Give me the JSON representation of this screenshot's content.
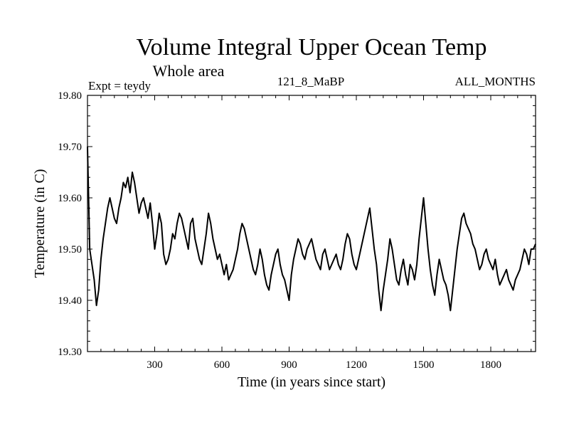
{
  "chart_data": {
    "type": "line",
    "title": "Volume Integral Upper Ocean Temp",
    "subtitle": "Whole area",
    "experiment": "Expt = teydy",
    "run": "121_8_MaBP",
    "period": "ALL_MONTHS",
    "xlabel": "Time (in years since start)",
    "ylabel": "Temperature (in C)",
    "xlim": [
      0,
      2000
    ],
    "ylim": [
      19.3,
      19.8
    ],
    "xticks": [
      300,
      600,
      900,
      1200,
      1500,
      1800
    ],
    "xtick_labels": [
      "300",
      "600",
      "900",
      "1200",
      "1500",
      "1800"
    ],
    "yticks": [
      19.3,
      19.4,
      19.5,
      19.6,
      19.7,
      19.8
    ],
    "ytick_labels": [
      "19.30",
      "19.40",
      "19.50",
      "19.60",
      "19.70",
      "19.80"
    ],
    "series": [
      {
        "name": "Temperature",
        "x": [
          0,
          10,
          20,
          30,
          40,
          50,
          60,
          70,
          80,
          90,
          100,
          110,
          120,
          130,
          140,
          150,
          160,
          170,
          180,
          190,
          200,
          210,
          220,
          230,
          240,
          250,
          260,
          270,
          280,
          290,
          300,
          310,
          320,
          330,
          340,
          350,
          360,
          370,
          380,
          390,
          400,
          410,
          420,
          430,
          440,
          450,
          460,
          470,
          480,
          490,
          500,
          510,
          520,
          530,
          540,
          550,
          560,
          570,
          580,
          590,
          600,
          610,
          620,
          630,
          640,
          650,
          660,
          670,
          680,
          690,
          700,
          710,
          720,
          730,
          740,
          750,
          760,
          770,
          780,
          790,
          800,
          810,
          820,
          830,
          840,
          850,
          860,
          870,
          880,
          890,
          900,
          910,
          920,
          930,
          940,
          950,
          960,
          970,
          980,
          990,
          1000,
          1010,
          1020,
          1030,
          1040,
          1050,
          1060,
          1070,
          1080,
          1090,
          1100,
          1110,
          1120,
          1130,
          1140,
          1150,
          1160,
          1170,
          1180,
          1190,
          1200,
          1210,
          1220,
          1230,
          1240,
          1250,
          1260,
          1270,
          1280,
          1290,
          1300,
          1310,
          1320,
          1330,
          1340,
          1350,
          1360,
          1370,
          1380,
          1390,
          1400,
          1410,
          1420,
          1430,
          1440,
          1450,
          1460,
          1470,
          1480,
          1490,
          1500,
          1510,
          1520,
          1530,
          1540,
          1550,
          1560,
          1570,
          1580,
          1590,
          1600,
          1610,
          1620,
          1630,
          1640,
          1650,
          1660,
          1670,
          1680,
          1690,
          1700,
          1710,
          1720,
          1730,
          1740,
          1750,
          1760,
          1770,
          1780,
          1790,
          1800,
          1810,
          1820,
          1830,
          1840,
          1850,
          1860,
          1870,
          1880,
          1890,
          1900,
          1910,
          1920,
          1930,
          1940,
          1950,
          1960,
          1970,
          1980,
          1990,
          2000
        ],
        "values": [
          19.7,
          19.5,
          19.47,
          19.44,
          19.39,
          19.42,
          19.48,
          19.52,
          19.55,
          19.58,
          19.6,
          19.58,
          19.56,
          19.55,
          19.58,
          19.6,
          19.63,
          19.62,
          19.64,
          19.61,
          19.65,
          19.63,
          19.6,
          19.57,
          19.59,
          19.6,
          19.58,
          19.56,
          19.59,
          19.55,
          19.5,
          19.53,
          19.57,
          19.55,
          19.49,
          19.47,
          19.48,
          19.5,
          19.53,
          19.52,
          19.55,
          19.57,
          19.56,
          19.54,
          19.52,
          19.5,
          19.55,
          19.56,
          19.52,
          19.5,
          19.48,
          19.47,
          19.5,
          19.53,
          19.57,
          19.55,
          19.52,
          19.5,
          19.48,
          19.49,
          19.47,
          19.45,
          19.47,
          19.44,
          19.45,
          19.46,
          19.48,
          19.5,
          19.53,
          19.55,
          19.54,
          19.52,
          19.5,
          19.48,
          19.46,
          19.45,
          19.47,
          19.5,
          19.48,
          19.45,
          19.43,
          19.42,
          19.45,
          19.47,
          19.49,
          19.5,
          19.47,
          19.45,
          19.44,
          19.42,
          19.4,
          19.45,
          19.48,
          19.5,
          19.52,
          19.51,
          19.49,
          19.48,
          19.5,
          19.51,
          19.52,
          19.5,
          19.48,
          19.47,
          19.46,
          19.49,
          19.5,
          19.48,
          19.46,
          19.47,
          19.48,
          19.49,
          19.47,
          19.46,
          19.48,
          19.51,
          19.53,
          19.52,
          19.49,
          19.47,
          19.46,
          19.48,
          19.5,
          19.52,
          19.54,
          19.56,
          19.58,
          19.54,
          19.5,
          19.47,
          19.42,
          19.38,
          19.42,
          19.45,
          19.48,
          19.52,
          19.5,
          19.47,
          19.44,
          19.43,
          19.46,
          19.48,
          19.45,
          19.43,
          19.47,
          19.46,
          19.44,
          19.47,
          19.52,
          19.56,
          19.6,
          19.55,
          19.5,
          19.46,
          19.43,
          19.41,
          19.45,
          19.48,
          19.46,
          19.44,
          19.43,
          19.41,
          19.38,
          19.42,
          19.46,
          19.5,
          19.53,
          19.56,
          19.57,
          19.55,
          19.54,
          19.53,
          19.51,
          19.5,
          19.48,
          19.46,
          19.47,
          19.49,
          19.5,
          19.48,
          19.47,
          19.46,
          19.48,
          19.45,
          19.43,
          19.44,
          19.45,
          19.46,
          19.44,
          19.43,
          19.42,
          19.44,
          19.45,
          19.46,
          19.48,
          19.5,
          19.49,
          19.47,
          19.5,
          19.5,
          19.51
        ]
      }
    ]
  }
}
